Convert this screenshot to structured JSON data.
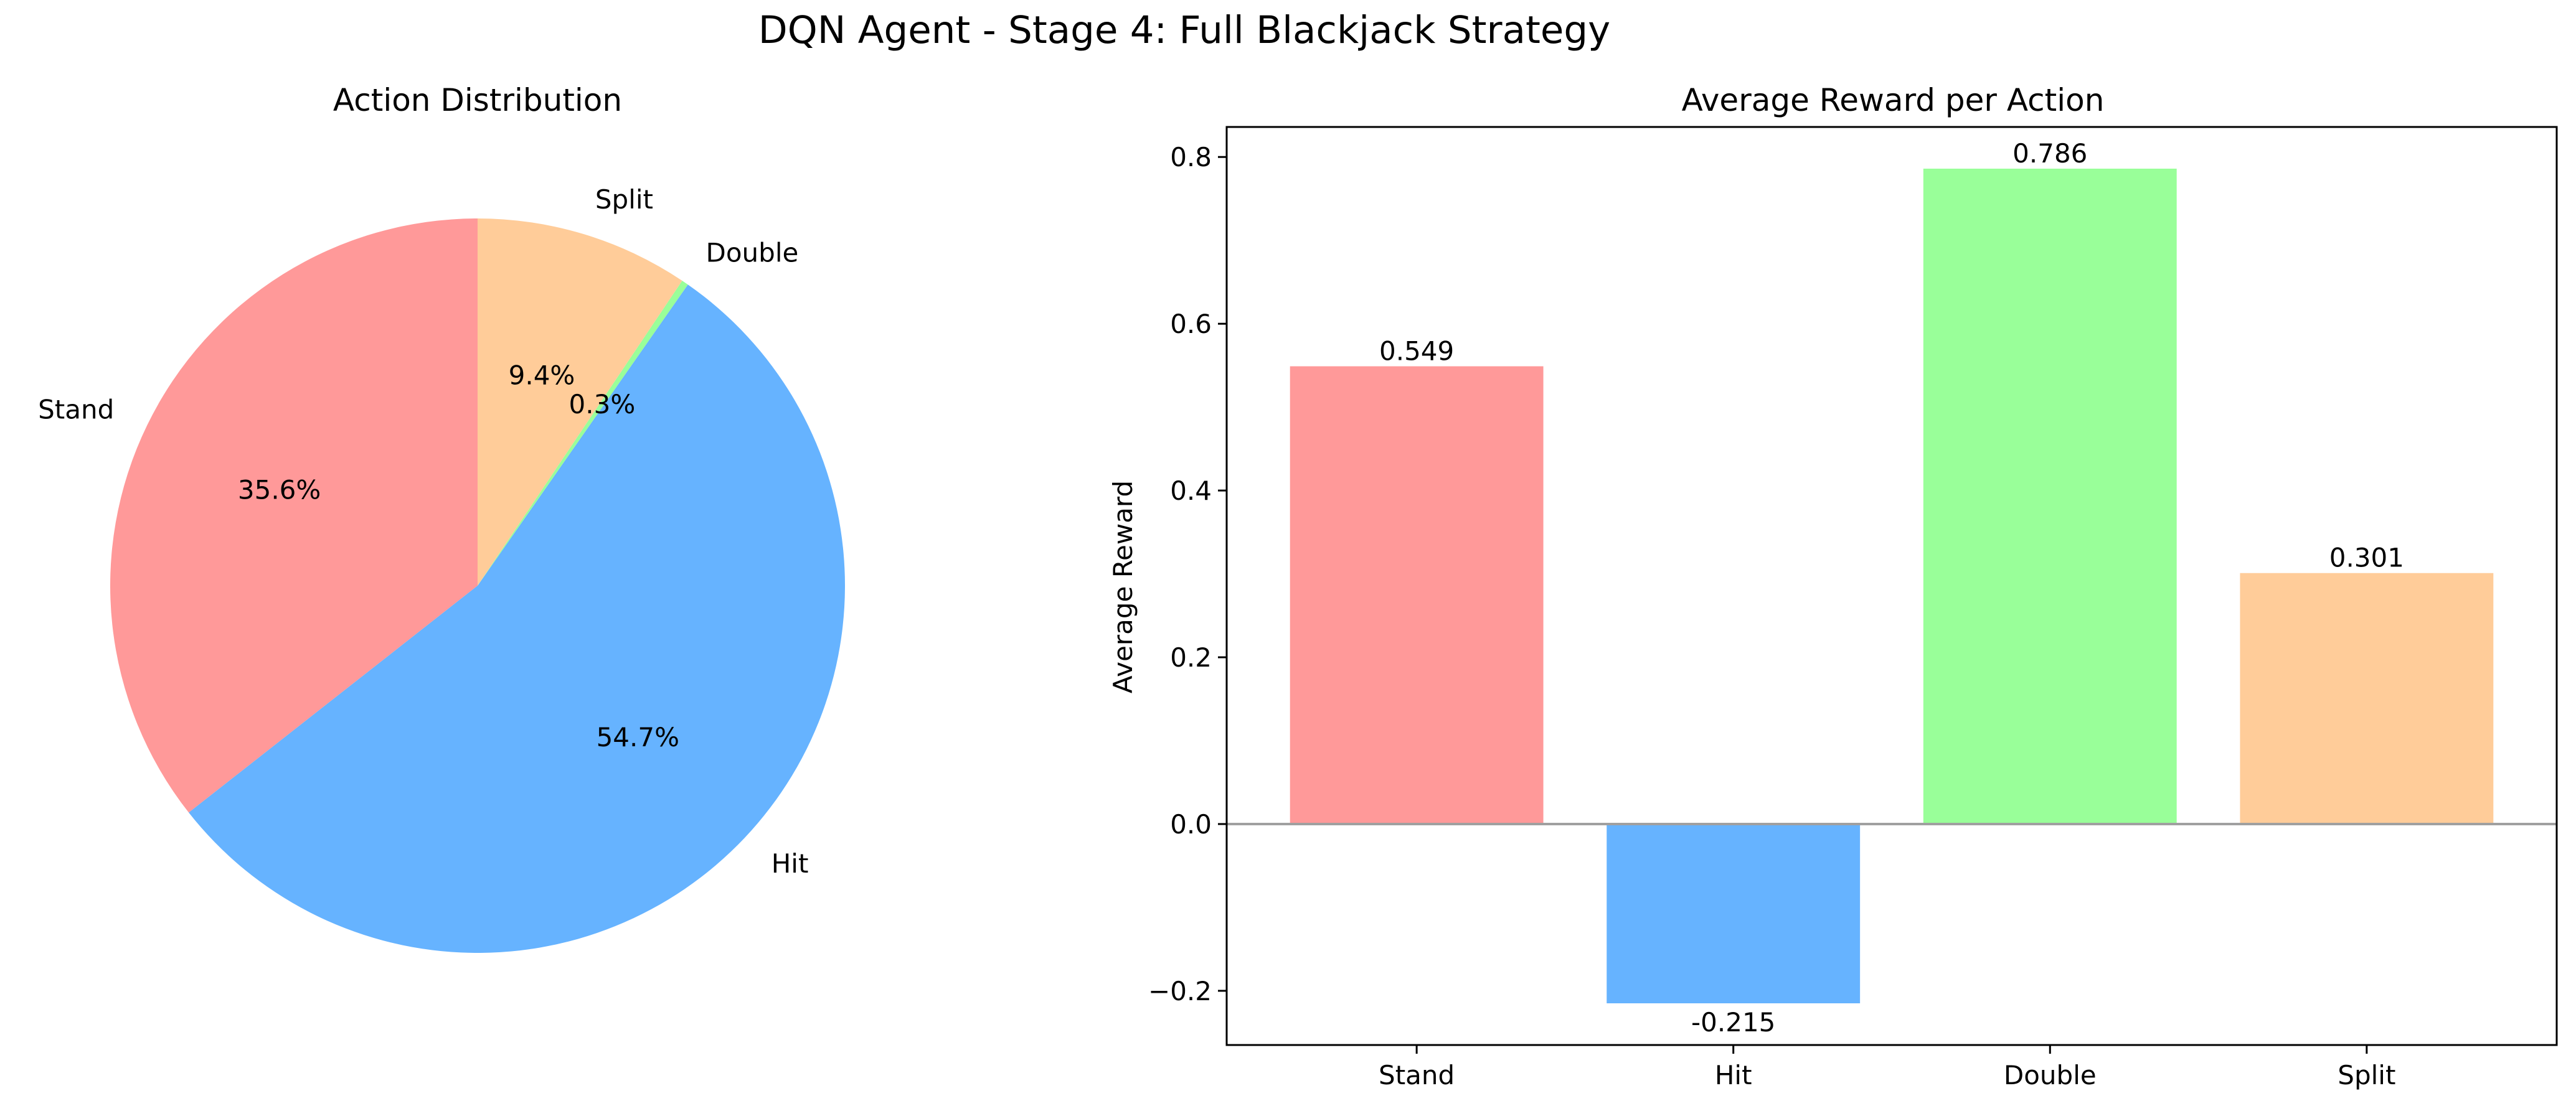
{
  "figure": {
    "title": "DQN Agent - Stage 4: Full Blackjack Strategy"
  },
  "colors": {
    "Stand": "#ff9999",
    "Hit": "#66b3ff",
    "Double": "#99ff99",
    "Split": "#ffcc99",
    "zero_line": "#a0a0a0",
    "axes": "#000000"
  },
  "chart_data": [
    {
      "type": "pie",
      "title": "Action Distribution",
      "labels": [
        "Stand",
        "Hit",
        "Double",
        "Split"
      ],
      "values": [
        35.6,
        54.7,
        0.3,
        9.4
      ],
      "pct_labels": [
        "35.6%",
        "54.7%",
        "0.3%",
        "9.4%"
      ],
      "start_angle_deg": 90,
      "direction": "counterclockwise"
    },
    {
      "type": "bar",
      "title": "Average Reward per Action",
      "categories": [
        "Stand",
        "Hit",
        "Double",
        "Split"
      ],
      "values": [
        0.549,
        -0.215,
        0.786,
        0.301
      ],
      "value_labels": [
        "0.549",
        "-0.215",
        "0.786",
        "0.301"
      ],
      "xlabel": "",
      "ylabel": "Average Reward",
      "ylim": [
        -0.265,
        0.836
      ],
      "yticks": [
        -0.2,
        0.0,
        0.2,
        0.4,
        0.6,
        0.8
      ],
      "ytick_labels": [
        "−0.2",
        "0.0",
        "0.2",
        "0.4",
        "0.6",
        "0.8"
      ],
      "zero_line": true,
      "grid": false
    }
  ]
}
